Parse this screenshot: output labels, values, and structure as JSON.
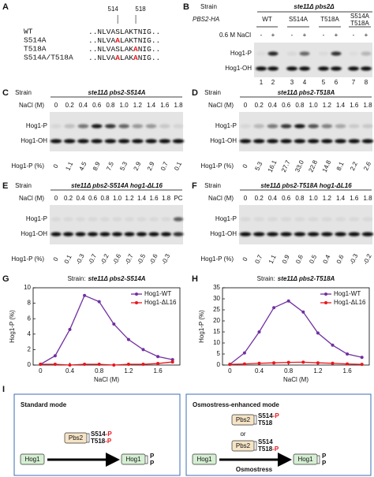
{
  "panel_a": {
    "label": "A",
    "positions": [
      "514",
      "518"
    ],
    "rows": [
      {
        "name": "WT",
        "parts": [
          {
            "text": "..NLVASLAKTNIG.."
          }
        ]
      },
      {
        "name": "S514A",
        "parts": [
          {
            "text": "..NLVA"
          },
          {
            "text": "A",
            "color": "#e8161b"
          },
          {
            "text": "LAKTNIG.."
          }
        ]
      },
      {
        "name": "T518A",
        "parts": [
          {
            "text": "..NLVASLAK"
          },
          {
            "text": "A",
            "color": "#e8161b"
          },
          {
            "text": "NIG.."
          }
        ]
      },
      {
        "name": "S514A/T518A",
        "parts": [
          {
            "text": "..NLVA"
          },
          {
            "text": "A",
            "color": "#e8161b"
          },
          {
            "text": "LAK"
          },
          {
            "text": "A",
            "color": "#e8161b"
          },
          {
            "text": "NIG.."
          }
        ]
      }
    ]
  },
  "panel_b": {
    "label": "B",
    "strain_label": "Strain",
    "strain": "ste11Δ pbs2Δ",
    "plasmid": "PBS2-HA",
    "groups": [
      [
        "WT"
      ],
      [
        "S514A"
      ],
      [
        "T518A"
      ],
      [
        "S514A",
        "T518A"
      ]
    ],
    "treatment": "0.6 M NaCl",
    "signs": [
      "-",
      "+",
      "-",
      "+",
      "-",
      "+",
      "-",
      "+"
    ],
    "bands": [
      "Hog1-P",
      "Hog1-OH"
    ],
    "lanes": [
      "1",
      "2",
      "3",
      "4",
      "5",
      "6",
      "7",
      "8"
    ]
  },
  "blots": [
    {
      "label": "C",
      "strain_label": "Strain",
      "strain": "ste11Δ pbs2-S514A",
      "nacl_label": "NaCl (M)",
      "nacl": [
        "0",
        "0.2",
        "0.4",
        "0.6",
        "0.8",
        "1.0",
        "1.2",
        "1.4",
        "1.6",
        "1.8"
      ],
      "bands": [
        "Hog1-P",
        "Hog1-OH"
      ],
      "pct_label": "Hog1-P (%)",
      "pct": [
        "0",
        "1.1",
        "4.5",
        "8.9",
        "7.5",
        "5.3",
        "2.9",
        "2.9",
        "0.7",
        "0.1"
      ]
    },
    {
      "label": "D",
      "strain_label": "Strain",
      "strain": "ste11Δ pbs2-T518A",
      "nacl_label": "NaCl (M)",
      "nacl": [
        "0",
        "0.2",
        "0.4",
        "0.6",
        "0.8",
        "1.0",
        "1.2",
        "1.4",
        "1.6",
        "1.8"
      ],
      "bands": [
        "Hog1-P",
        "Hog1-OH"
      ],
      "pct_label": "Hog1-P (%)",
      "pct": [
        "0",
        "5.3",
        "16.1",
        "27.7",
        "33.0",
        "22.8",
        "14.8",
        "8.1",
        "2.2",
        "2.6"
      ]
    },
    {
      "label": "E",
      "strain_label": "Strain",
      "strain": "ste11Δ pbs2-S514A hog1-ΔL16",
      "nacl_label": "NaCl (M)",
      "nacl": [
        "0",
        "0.2",
        "0.4",
        "0.6",
        "0.8",
        "1.0",
        "1.2",
        "1.4",
        "1.6",
        "1.8"
      ],
      "extra_lane": "PC",
      "bands": [
        "Hog1-P",
        "Hog1-OH"
      ],
      "pct_label": "Hog1-P (%)",
      "pct": [
        "0",
        "0.1",
        "-0.3",
        "-0.7",
        "-0.2",
        "-0.6",
        "-0.7",
        "-0.5",
        "-0.6",
        "-0.3"
      ]
    },
    {
      "label": "F",
      "strain_label": "Strain",
      "strain": "ste11Δ pbs2-T518A hog1-ΔL16",
      "nacl_label": "NaCl (M)",
      "nacl": [
        "0",
        "0.2",
        "0.4",
        "0.6",
        "0.8",
        "1.0",
        "1.2",
        "1.4",
        "1.6",
        "1.8"
      ],
      "bands": [
        "Hog1-P",
        "Hog1-OH"
      ],
      "pct_label": "Hog1-P (%)",
      "pct": [
        "0",
        "0.7",
        "1.1",
        "0.9",
        "0.6",
        "0.5",
        "0.4",
        "0.6",
        "-0.3",
        "-0.2"
      ]
    }
  ],
  "chart_data": [
    {
      "type": "line",
      "label": "G",
      "title": "Strain:",
      "strain": "ste11Δ pbs2-S514A",
      "xlabel": "NaCl (M)",
      "ylabel": "Hog1-P (%)",
      "x": [
        0,
        0.2,
        0.4,
        0.6,
        0.8,
        1.0,
        1.2,
        1.4,
        1.6,
        1.8
      ],
      "xlim": [
        -0.1,
        1.9
      ],
      "xticks": [
        0,
        0.4,
        0.8,
        1.2,
        1.6
      ],
      "ylim": [
        0,
        10
      ],
      "yticks": [
        0,
        2,
        4,
        6,
        8,
        10
      ],
      "legend": "upper right",
      "series": [
        {
          "name": "Hog1-WT",
          "color": "#7030a0",
          "values": [
            0.1,
            1.2,
            4.6,
            9.0,
            8.2,
            5.3,
            3.3,
            2.0,
            1.1,
            0.7
          ]
        },
        {
          "name": "Hog1-ΔL16",
          "color": "#e8161b",
          "values": [
            0.1,
            0.1,
            0.0,
            0.1,
            0.1,
            0.0,
            0.1,
            0.1,
            0.2,
            0.4
          ]
        }
      ]
    },
    {
      "type": "line",
      "label": "H",
      "title": "Strain:",
      "strain": "ste11Δ pbs2-T518A",
      "xlabel": "NaCl (M)",
      "ylabel": "Hog1-P (%)",
      "x": [
        0,
        0.2,
        0.4,
        0.6,
        0.8,
        1.0,
        1.2,
        1.4,
        1.6,
        1.8
      ],
      "xlim": [
        -0.1,
        1.9
      ],
      "xticks": [
        0,
        0.4,
        0.8,
        1.2,
        1.6
      ],
      "ylim": [
        0,
        35
      ],
      "yticks": [
        0,
        5,
        10,
        15,
        20,
        25,
        30,
        35
      ],
      "legend": "upper right",
      "series": [
        {
          "name": "Hog1-WT",
          "color": "#7030a0",
          "values": [
            0.3,
            5.5,
            15.0,
            26.0,
            29.0,
            24.0,
            14.5,
            9.0,
            5.0,
            3.5
          ]
        },
        {
          "name": "Hog1-ΔL16",
          "color": "#e8161b",
          "values": [
            0.3,
            0.5,
            0.8,
            1.0,
            1.2,
            1.3,
            1.0,
            0.8,
            0.5,
            0.3
          ]
        }
      ]
    }
  ],
  "panel_i": {
    "label": "I",
    "modes": [
      {
        "title": "Standard mode",
        "kinase": "Pbs2",
        "options": [
          [
            {
              "site": "S514",
              "mod": "-P"
            },
            {
              "site": "T518",
              "mod": "-P"
            }
          ]
        ],
        "substrate": "Hog1",
        "product": "Hog1",
        "phospho": [
          "P",
          "P"
        ]
      },
      {
        "title": "Osmostress-enhanced mode",
        "kinase": "Pbs2",
        "options": [
          [
            {
              "site": "S514",
              "mod": "-P"
            },
            {
              "site": "T518"
            }
          ],
          [
            {
              "site": "S514"
            },
            {
              "site": "T518",
              "mod": "-P"
            }
          ]
        ],
        "separator": "or",
        "substrate": "Hog1",
        "product": "Hog1",
        "phospho": [
          "P",
          "P"
        ],
        "stimulus": "Osmostress"
      }
    ]
  }
}
